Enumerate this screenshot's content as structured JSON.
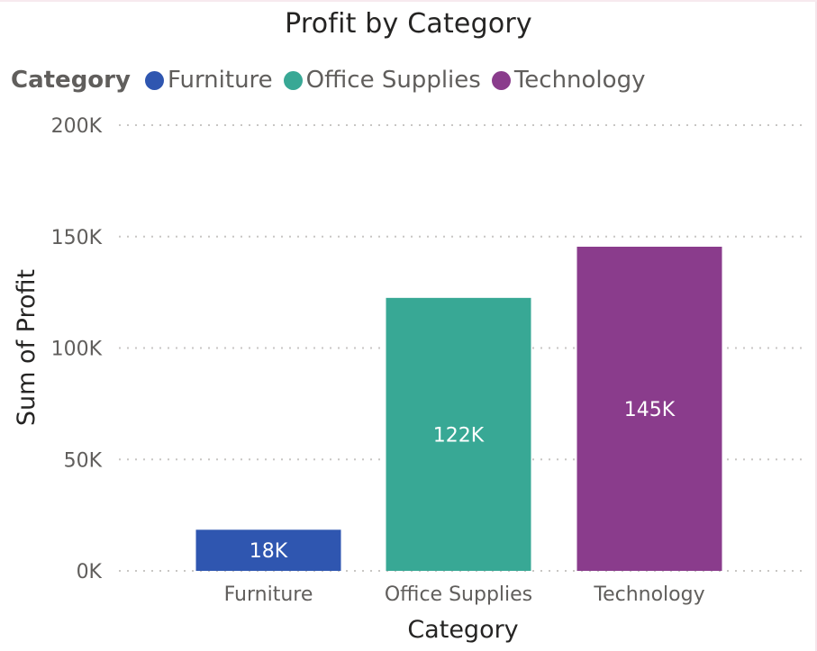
{
  "chart_data": {
    "type": "bar",
    "title": "Profit by Category",
    "xlabel": "Category",
    "ylabel": "Sum of Profit",
    "categories": [
      "Furniture",
      "Office Supplies",
      "Technology"
    ],
    "values": [
      18451,
      122491,
      145455
    ],
    "data_labels": [
      "18K",
      "122K",
      "145K"
    ],
    "colors": [
      "#2f56b0",
      "#38a895",
      "#8a3c8c"
    ],
    "ylim": [
      0,
      200000
    ],
    "yticks": [
      0,
      50000,
      100000,
      150000,
      200000
    ],
    "ytick_labels": [
      "0K",
      "50K",
      "100K",
      "150K",
      "200K"
    ],
    "grid": true,
    "legend": {
      "title": "Category",
      "position": "top-left",
      "entries": [
        "Furniture",
        "Office Supplies",
        "Technology"
      ]
    }
  }
}
